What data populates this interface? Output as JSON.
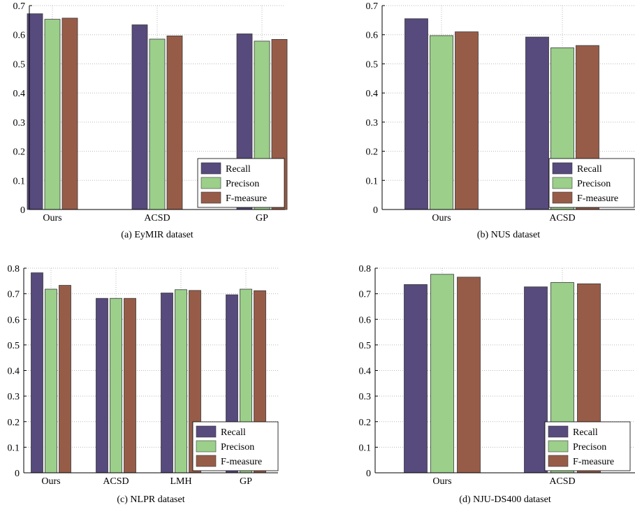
{
  "chart_data": [
    {
      "type": "bar",
      "title": "(a) EyMIR dataset",
      "categories": [
        "Ours",
        "ACSD",
        "GP"
      ],
      "series": [
        {
          "name": "Recall",
          "values": [
            0.672,
            0.634,
            0.603
          ]
        },
        {
          "name": "Precison",
          "values": [
            0.653,
            0.585,
            0.578
          ]
        },
        {
          "name": "F-measure",
          "values": [
            0.657,
            0.596,
            0.584
          ]
        }
      ],
      "ylim": [
        0,
        0.7
      ],
      "yticks": [
        "0",
        "0.1",
        "0.2",
        "0.3",
        "0.4",
        "0.5",
        "0.6",
        "0.7"
      ],
      "grid": true,
      "legend_position": "bottom-right"
    },
    {
      "type": "bar",
      "title": "(b) NUS dataset",
      "categories": [
        "Ours",
        "ACSD"
      ],
      "series": [
        {
          "name": "Recall",
          "values": [
            0.655,
            0.592
          ]
        },
        {
          "name": "Precison",
          "values": [
            0.597,
            0.555
          ]
        },
        {
          "name": "F-measure",
          "values": [
            0.61,
            0.563
          ]
        }
      ],
      "ylim": [
        0,
        0.7
      ],
      "yticks": [
        "0",
        "0.1",
        "0.2",
        "0.3",
        "0.4",
        "0.5",
        "0.6",
        "0.7"
      ],
      "grid": true,
      "legend_position": "bottom-right"
    },
    {
      "type": "bar",
      "title": "(c) NLPR dataset",
      "categories": [
        "Ours",
        "ACSD",
        "LMH",
        "GP"
      ],
      "series": [
        {
          "name": "Recall",
          "values": [
            0.782,
            0.682,
            0.703,
            0.696
          ]
        },
        {
          "name": "Precison",
          "values": [
            0.718,
            0.682,
            0.716,
            0.718
          ]
        },
        {
          "name": "F-measure",
          "values": [
            0.733,
            0.682,
            0.713,
            0.712
          ]
        }
      ],
      "ylim": [
        0,
        0.8
      ],
      "yticks": [
        "0",
        "0.1",
        "0.2",
        "0.3",
        "0.4",
        "0.5",
        "0.6",
        "0.7",
        "0.8"
      ],
      "grid": true,
      "legend_position": "bottom-right"
    },
    {
      "type": "bar",
      "title": "(d) NJU-DS400 dataset",
      "categories": [
        "Ours",
        "ACSD"
      ],
      "series": [
        {
          "name": "Recall",
          "values": [
            0.736,
            0.727
          ]
        },
        {
          "name": "Precison",
          "values": [
            0.776,
            0.744
          ]
        },
        {
          "name": "F-measure",
          "values": [
            0.765,
            0.739
          ]
        }
      ],
      "ylim": [
        0,
        0.8
      ],
      "yticks": [
        "0",
        "0.1",
        "0.2",
        "0.3",
        "0.4",
        "0.5",
        "0.6",
        "0.7",
        "0.8"
      ],
      "grid": true,
      "legend_position": "bottom-right"
    }
  ],
  "colors": {
    "Recall": "#574a7c",
    "Precison": "#9bcf8a",
    "F-measure": "#975c48"
  }
}
